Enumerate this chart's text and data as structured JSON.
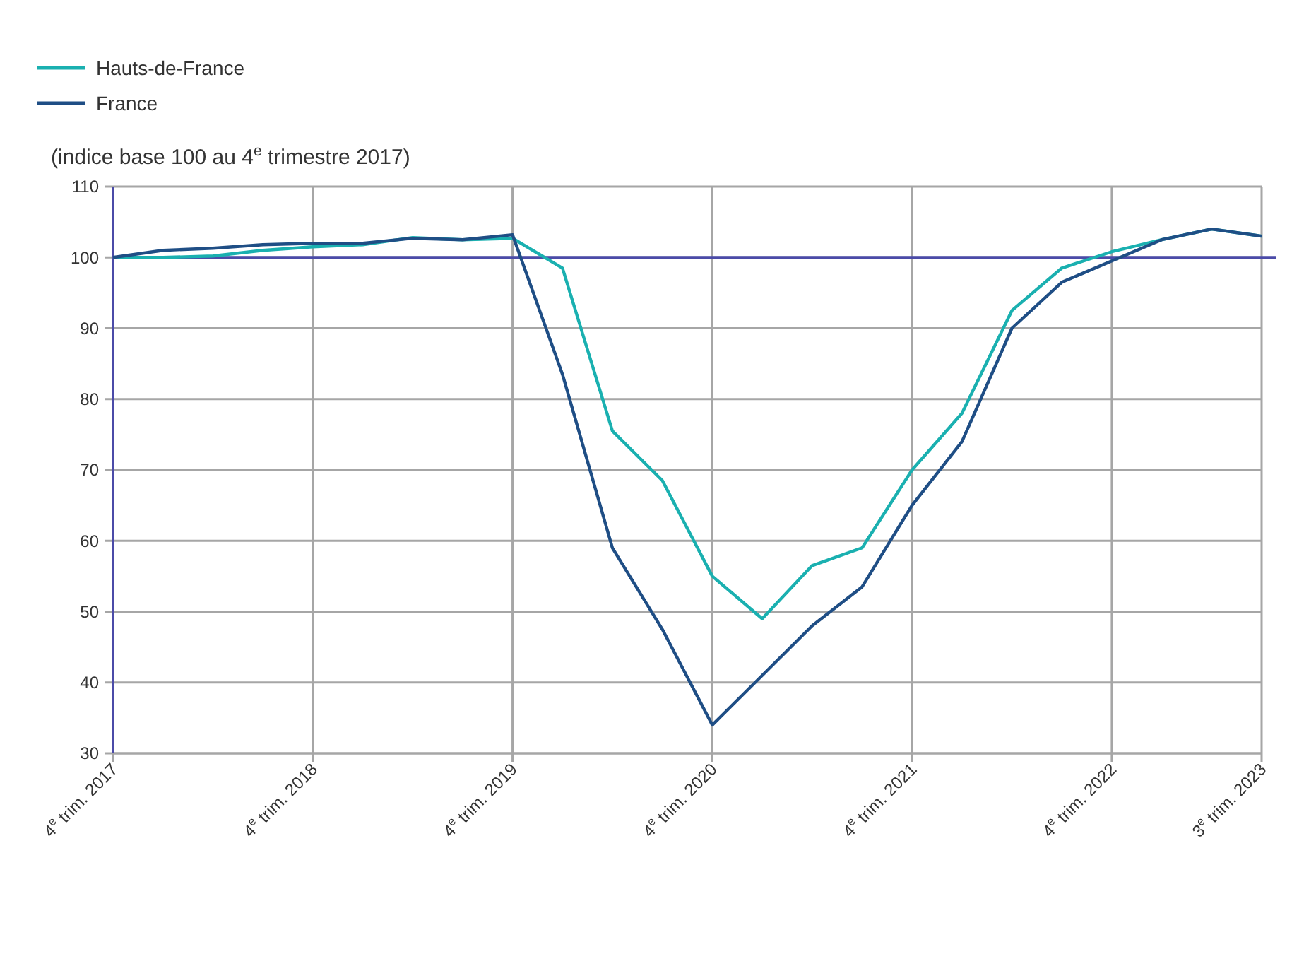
{
  "chart_data": {
    "type": "line",
    "ylabel": "(indice base 100 au 4$^{e}$ trimestre 2017)",
    "categories": [
      "4$^{e}$ trim. 2017",
      null,
      null,
      null,
      "4$^{e}$ trim. 2018",
      null,
      null,
      null,
      "4$^{e}$ trim. 2019",
      null,
      null,
      null,
      "4$^{e}$ trim. 2020",
      null,
      null,
      null,
      "4$^{e}$ trim. 2021",
      null,
      null,
      null,
      "4$^{e}$ trim. 2022",
      null,
      null,
      "3$^{e}$ trim. 2023"
    ],
    "series": [
      {
        "name": "Hauts-de-France",
        "color": "#1ab0b0",
        "values": [
          100,
          100,
          100.2,
          101,
          101.5,
          101.8,
          102.8,
          102.5,
          102.7,
          98.5,
          75.5,
          68.5,
          55,
          49,
          56.5,
          59,
          70,
          78,
          92.5,
          98.5,
          100.8,
          102.5,
          104,
          103
        ]
      },
      {
        "name": "France",
        "color": "#1f4e85",
        "values": [
          100,
          101,
          101.3,
          101.8,
          102,
          102,
          102.7,
          102.5,
          103.2,
          83.5,
          59,
          47.5,
          34,
          41,
          48,
          53.5,
          65,
          74,
          90,
          96.5,
          99.5,
          102.5,
          104,
          103
        ]
      }
    ],
    "ylim": [
      30,
      110
    ],
    "yticks": [
      30,
      40,
      50,
      60,
      70,
      80,
      90,
      100,
      110
    ],
    "grid": true,
    "legend": "top left",
    "marker": "none",
    "line_style": "solid",
    "ref_lines": [
      {
        "axis": "y",
        "value": 100,
        "color": "#4b4ba8"
      }
    ]
  }
}
